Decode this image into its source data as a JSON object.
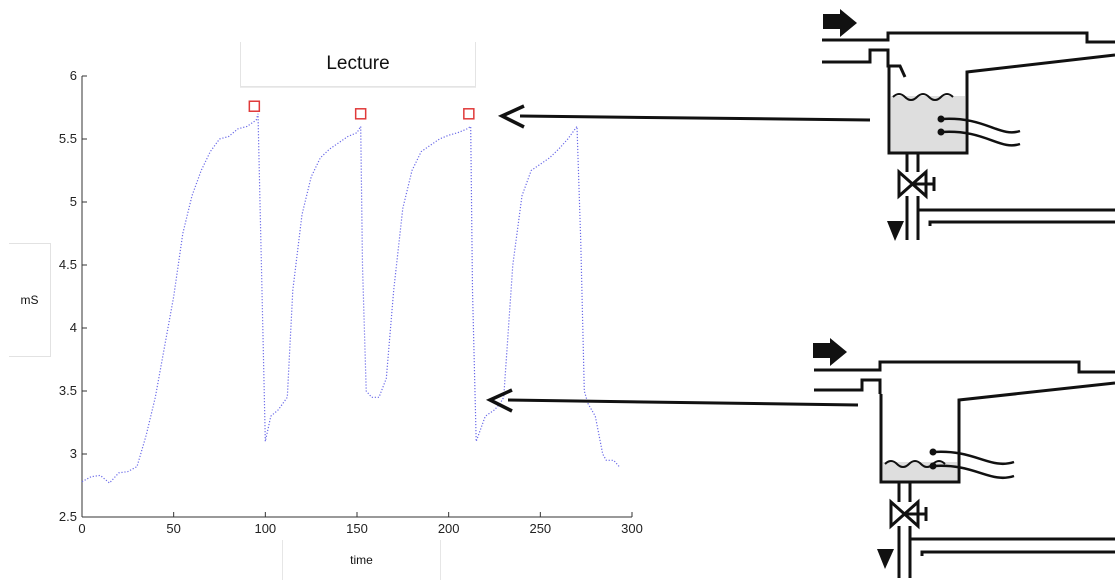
{
  "chart_data": {
    "type": "line",
    "title": "Lecture",
    "xlabel": "time",
    "ylabel": "mS",
    "xlim": [
      0,
      300
    ],
    "ylim": [
      2.5,
      6
    ],
    "xticks": [
      "0",
      "50",
      "100",
      "150",
      "200",
      "250",
      "300"
    ],
    "yticks": [
      "2.5",
      "3",
      "3.5",
      "4",
      "4.5",
      "5",
      "5.5",
      "6"
    ],
    "grid": false,
    "series": [
      {
        "style": "dotted",
        "color": "#6a6ae8",
        "x": [
          0,
          5,
          10,
          15,
          20,
          25,
          30,
          35,
          40,
          45,
          50,
          55,
          60,
          65,
          70,
          75,
          80,
          85,
          90,
          95,
          96,
          98,
          100,
          103,
          107,
          112,
          115,
          120,
          125,
          130,
          135,
          140,
          145,
          150,
          152,
          153,
          155,
          158,
          162,
          166,
          170,
          175,
          180,
          185,
          190,
          195,
          200,
          205,
          210,
          212,
          213,
          215,
          220,
          225,
          228,
          230,
          235,
          240,
          245,
          250,
          255,
          260,
          265,
          270,
          272,
          274,
          276,
          280,
          284,
          286,
          290,
          293
        ],
        "y": [
          2.78,
          2.82,
          2.83,
          2.77,
          2.85,
          2.86,
          2.9,
          3.15,
          3.45,
          3.85,
          4.25,
          4.75,
          5.05,
          5.25,
          5.4,
          5.5,
          5.52,
          5.58,
          5.6,
          5.65,
          5.7,
          4.4,
          3.1,
          3.3,
          3.35,
          3.45,
          4.3,
          4.9,
          5.2,
          5.35,
          5.42,
          5.47,
          5.52,
          5.55,
          5.6,
          4.5,
          3.5,
          3.45,
          3.45,
          3.6,
          4.3,
          4.95,
          5.25,
          5.4,
          5.45,
          5.5,
          5.53,
          5.55,
          5.58,
          5.6,
          4.3,
          3.1,
          3.3,
          3.35,
          3.4,
          3.45,
          4.5,
          5.05,
          5.25,
          5.3,
          5.35,
          5.42,
          5.5,
          5.6,
          4.7,
          3.5,
          3.4,
          3.3,
          3.0,
          2.95,
          2.95,
          2.9
        ]
      }
    ],
    "markers": [
      {
        "x": 94,
        "y": 5.76
      },
      {
        "x": 152,
        "y": 5.7
      },
      {
        "x": 211,
        "y": 5.7
      }
    ]
  }
}
